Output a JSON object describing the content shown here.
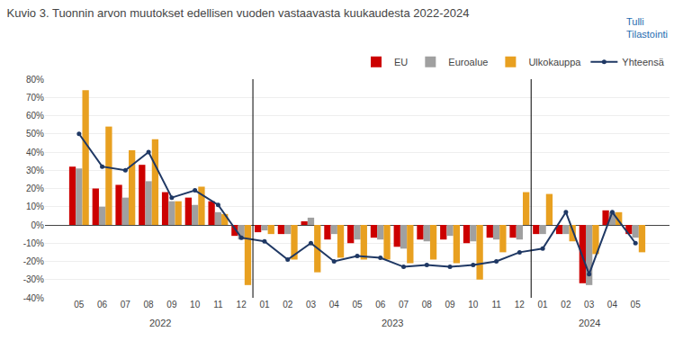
{
  "chart_data": {
    "type": "bar",
    "title": "Kuvio 3. Tuonnin arvon muutokset edellisen vuoden vastaavasta kuukaudesta 2022-2024",
    "categories": [
      "05",
      "06",
      "07",
      "08",
      "09",
      "10",
      "11",
      "12",
      "01",
      "02",
      "03",
      "04",
      "05",
      "06",
      "07",
      "08",
      "09",
      "10",
      "11",
      "12",
      "01",
      "02",
      "03",
      "04",
      "05"
    ],
    "series": [
      {
        "name": "EU",
        "type": "bar",
        "color": "#CC0000",
        "values": [
          32,
          20,
          22,
          33,
          18,
          15,
          13,
          -6,
          -4,
          -5,
          2,
          -8,
          -10,
          -7,
          -12,
          -8,
          -8,
          -10,
          -7,
          -7,
          -5,
          -5,
          -32,
          8,
          -5
        ]
      },
      {
        "name": "Euroalue",
        "type": "bar",
        "color": "#A0A0A0",
        "values": [
          31,
          10,
          15,
          24,
          13,
          11,
          7,
          -8,
          -3,
          -5,
          4,
          -5,
          -8,
          -8,
          -13,
          -9,
          -6,
          -9,
          -8,
          -8,
          -5,
          -5,
          -33,
          7,
          -7
        ]
      },
      {
        "name": "Ulkokauppa",
        "type": "bar",
        "color": "#E8A020",
        "values": [
          74,
          54,
          41,
          47,
          13,
          21,
          6,
          -33,
          -5,
          -19,
          -26,
          -18,
          -19,
          -19,
          -21,
          -19,
          -21,
          -30,
          -15,
          18,
          17,
          -9,
          -16,
          7,
          -15
        ]
      },
      {
        "name": "Yhteensä",
        "type": "line",
        "color": "#1F3864",
        "marker": "circle",
        "line_style": "solid",
        "values": [
          50,
          32,
          30,
          40,
          15,
          19,
          11,
          -7,
          -9,
          -19,
          -10,
          -20,
          -17,
          -18,
          -23,
          -22,
          -23,
          -22,
          -20,
          -15,
          -13,
          7,
          -27,
          7,
          -10
        ]
      }
    ],
    "ylim": [
      -40,
      80
    ],
    "yticks": [
      {
        "value": -40,
        "label": "-40%"
      },
      {
        "value": -30,
        "label": "-30%"
      },
      {
        "value": -20,
        "label": "-20%"
      },
      {
        "value": -10,
        "label": "-10%"
      },
      {
        "value": 0,
        "label": "0%"
      },
      {
        "value": 10,
        "label": "10%"
      },
      {
        "value": 20,
        "label": "20%"
      },
      {
        "value": 30,
        "label": "30%"
      },
      {
        "value": 40,
        "label": "40%"
      },
      {
        "value": 50,
        "label": "50%"
      },
      {
        "value": 60,
        "label": "60%"
      },
      {
        "value": 70,
        "label": "70%"
      },
      {
        "value": 80,
        "label": "80%"
      }
    ],
    "annotations": [
      "2022",
      "2023",
      "2024",
      "Tulli",
      "Tilastointi"
    ],
    "grid": true,
    "legend": "upper right"
  }
}
